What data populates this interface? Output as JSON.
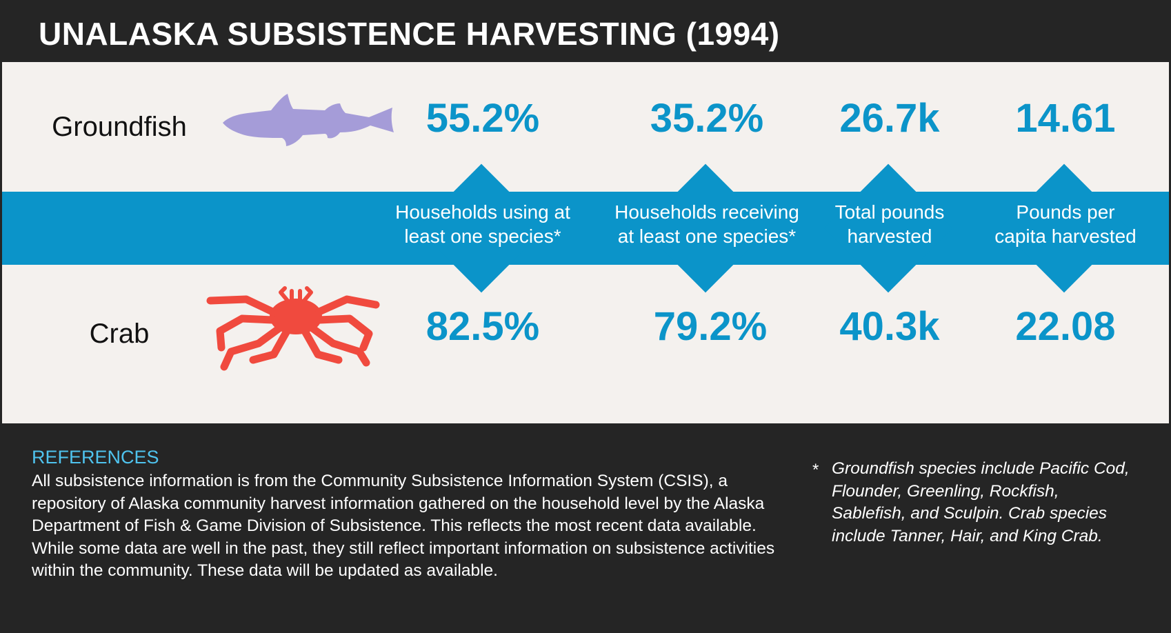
{
  "title": "UNALASKA SUBSISTENCE HARVESTING (1994)",
  "rows": [
    {
      "label": "Groundfish",
      "icon": "groundfish-icon",
      "icon_color": "#a59cd8",
      "values": [
        "55.2%",
        "35.2%",
        "26.7k",
        "14.61"
      ]
    },
    {
      "label": "Crab",
      "icon": "crab-icon",
      "icon_color": "#f04a3e",
      "values": [
        "82.5%",
        "79.2%",
        "40.3k",
        "22.08"
      ]
    }
  ],
  "metrics": [
    {
      "line1": "Households using at",
      "line2": "least one species*"
    },
    {
      "line1": "Households receiving",
      "line2": "at least one species*"
    },
    {
      "line1": "Total pounds",
      "line2": "harvested"
    },
    {
      "line1": "Pounds per",
      "line2": "capita harvested"
    }
  ],
  "references": {
    "heading": "REFERENCES",
    "body": "All subsistence information is from the Community Subsistence Information System (CSIS), a repository of Alaska community harvest information gathered on the household level by the Alaska Department of Fish & Game Division of Subsistence. This reflects the most recent data available. While some data are well in the past, they still reflect important information on subsistence activities within the community. These data will be updated as available."
  },
  "footnote": {
    "marker": "*",
    "text": "Groundfish species include Pacific Cod, Flounder, Greenling, Rockfish, Sablefish, and Sculpin. Crab species include Tanner, Hair, and King Crab."
  },
  "colors": {
    "accent": "#0b94c9",
    "panel": "#f4f1ee",
    "background": "#252525",
    "reference_heading": "#4fc3ee"
  }
}
